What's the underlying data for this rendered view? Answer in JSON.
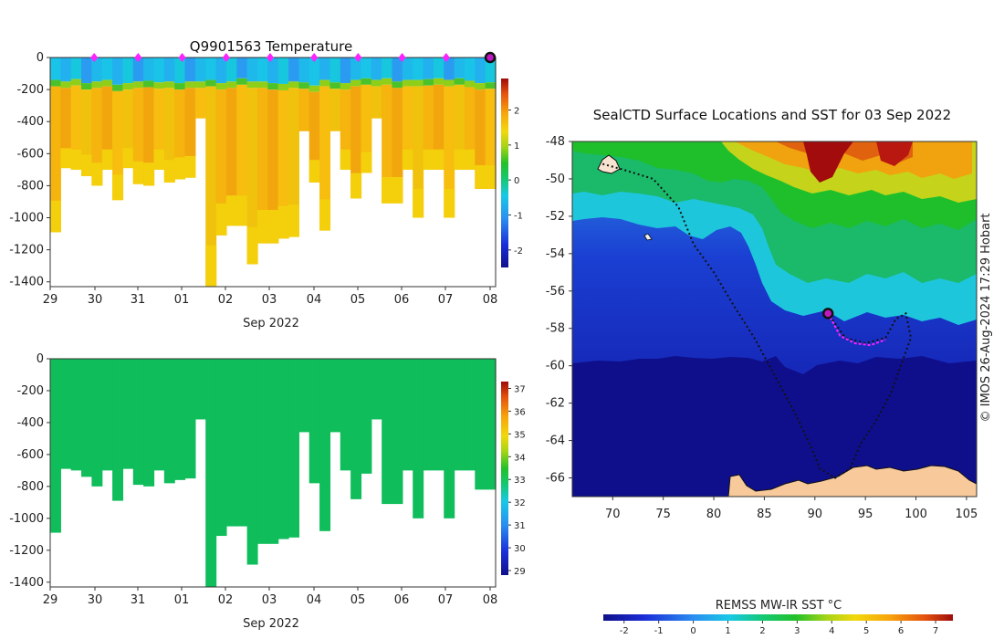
{
  "chart_data": [
    {
      "type": "heatmap",
      "title": "Q9901563  Temperature",
      "variable": "temperature",
      "xlabel": "Sep 2022",
      "x_ticks": [
        "29",
        "30",
        "31",
        "01",
        "02",
        "03",
        "04",
        "05",
        "06",
        "07",
        "08"
      ],
      "y_ticks": [
        "0",
        "-200",
        "-400",
        "-600",
        "-800",
        "-1000",
        "-1200",
        "-1400"
      ],
      "ylim": [
        -1430,
        0
      ],
      "colorbar_ticks": [
        "2",
        "1",
        "0",
        "-1",
        "-2"
      ],
      "colorbar_range": [
        -2.5,
        2.9
      ],
      "surface_marker_days": [
        1,
        2,
        3,
        4,
        5,
        6,
        7,
        8,
        9
      ],
      "current_marker_day": 10,
      "profile_depths": [
        1090,
        690,
        700,
        740,
        800,
        700,
        890,
        690,
        790,
        800,
        700,
        780,
        760,
        750,
        380,
        1430,
        1110,
        1050,
        1050,
        1290,
        1160,
        1160,
        1130,
        1120,
        460,
        780,
        1080,
        460,
        700,
        880,
        720,
        380,
        910,
        910,
        700,
        1000,
        700,
        700,
        1000,
        700,
        700,
        820,
        820
      ],
      "mixed_layer_depths": [
        140,
        150,
        135,
        160,
        150,
        140,
        170,
        160,
        150,
        145,
        155,
        150,
        160,
        150,
        150,
        140,
        160,
        150,
        130,
        150,
        150,
        160,
        165,
        150,
        155,
        175,
        140,
        155,
        160,
        140,
        130,
        140,
        130,
        150,
        140,
        140,
        135,
        130,
        140,
        130,
        145,
        160,
        155
      ]
    },
    {
      "type": "heatmap",
      "title": "",
      "variable": "salinity",
      "xlabel": "Sep 2022",
      "x_ticks": [
        "29",
        "30",
        "31",
        "01",
        "02",
        "03",
        "04",
        "05",
        "06",
        "07",
        "08"
      ],
      "y_ticks": [
        "0",
        "-200",
        "-400",
        "-600",
        "-800",
        "-1000",
        "-1200",
        "-1400"
      ],
      "ylim": [
        -1430,
        0
      ],
      "colorbar_ticks": [
        "37",
        "36",
        "35",
        "34",
        "33",
        "32",
        "31",
        "30",
        "29"
      ],
      "colorbar_range": [
        28.8,
        37.3
      ],
      "profile_depths": [
        1090,
        690,
        700,
        740,
        800,
        700,
        890,
        690,
        790,
        800,
        700,
        780,
        760,
        750,
        380,
        1430,
        1110,
        1050,
        1050,
        1290,
        1160,
        1160,
        1130,
        1120,
        460,
        780,
        1080,
        460,
        700,
        880,
        720,
        380,
        910,
        910,
        700,
        1000,
        700,
        700,
        1000,
        700,
        700,
        820,
        820
      ]
    },
    {
      "type": "map",
      "title": "SealCTD Surface Locations and SST for 03 Sep 2022",
      "x_ticks": [
        "70",
        "75",
        "80",
        "85",
        "90",
        "95",
        "100",
        "105"
      ],
      "y_ticks": [
        "-48",
        "-50",
        "-52",
        "-54",
        "-56",
        "-58",
        "-60",
        "-62",
        "-64",
        "-66"
      ],
      "xlim": [
        66,
        106
      ],
      "ylim": [
        -67,
        -48
      ],
      "colorbar_label": "REMSS MW-IR SST °C",
      "colorbar_ticks": [
        "-2",
        "-1",
        "0",
        "1",
        "2",
        "3",
        "4",
        "5",
        "6",
        "7"
      ],
      "colorbar_range": [
        -2.6,
        7.5
      ],
      "current_position": [
        91.3,
        -57.2
      ],
      "track": [
        [
          69.0,
          -49.2
        ],
        [
          71.0,
          -49.5
        ],
        [
          74.0,
          -50.0
        ],
        [
          76.5,
          -51.5
        ],
        [
          78.0,
          -53.5
        ],
        [
          80.0,
          -55.0
        ],
        [
          82.0,
          -56.8
        ],
        [
          84.0,
          -58.5
        ],
        [
          86.0,
          -60.5
        ],
        [
          88.0,
          -62.5
        ],
        [
          89.5,
          -64.2
        ],
        [
          90.5,
          -65.5
        ],
        [
          92.0,
          -66.0
        ],
        [
          93.5,
          -65.5
        ],
        [
          94.5,
          -64.2
        ],
        [
          96.0,
          -63.0
        ],
        [
          97.5,
          -61.5
        ],
        [
          98.5,
          -60.0
        ],
        [
          99.5,
          -58.5
        ],
        [
          99.0,
          -57.2
        ],
        [
          98.0,
          -57.5
        ],
        [
          97.0,
          -58.5
        ],
        [
          95.0,
          -58.8
        ],
        [
          93.0,
          -58.5
        ],
        [
          91.3,
          -57.2
        ]
      ],
      "recent_track": [
        [
          91.3,
          -57.2
        ],
        [
          92.5,
          -58.4
        ],
        [
          94.0,
          -58.8
        ],
        [
          95.5,
          -58.9
        ],
        [
          97.0,
          -58.6
        ]
      ],
      "side_label": "© IMOS 26-Aug-2024 17:29 Hobart"
    }
  ]
}
